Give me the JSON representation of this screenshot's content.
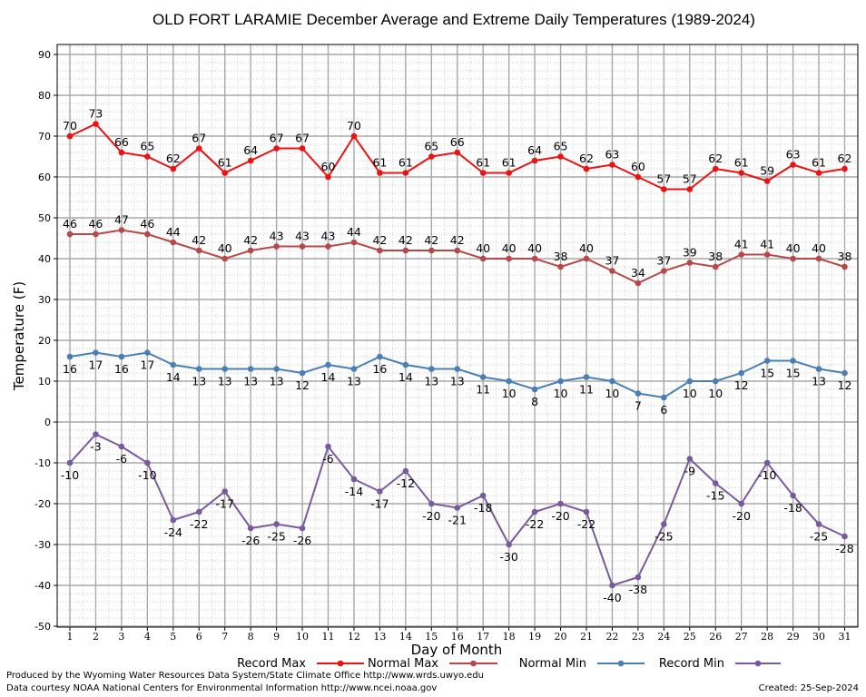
{
  "chart_data": {
    "type": "line",
    "title": "OLD FORT LARAMIE December Average and Extreme Daily Temperatures (1989-2024)",
    "xlabel": "Day of Month",
    "ylabel": "Temperature (F)",
    "ylim": [
      -50,
      92
    ],
    "yticks": [
      -50,
      -40,
      -30,
      -20,
      -10,
      0,
      10,
      20,
      30,
      40,
      50,
      60,
      70,
      80,
      90
    ],
    "x": [
      1,
      2,
      3,
      4,
      5,
      6,
      7,
      8,
      9,
      10,
      11,
      12,
      13,
      14,
      15,
      16,
      17,
      18,
      19,
      20,
      21,
      22,
      23,
      24,
      25,
      26,
      27,
      28,
      29,
      30,
      31
    ],
    "grid": true,
    "legend_placement": "bottom",
    "series": [
      {
        "name": "Record Max",
        "color": "#ee1111",
        "values": [
          70,
          73,
          66,
          65,
          62,
          67,
          61,
          64,
          67,
          67,
          60,
          70,
          61,
          61,
          65,
          66,
          61,
          61,
          64,
          65,
          62,
          63,
          60,
          57,
          57,
          62,
          61,
          59,
          63,
          61,
          62
        ]
      },
      {
        "name": "Normal Max",
        "color": "#b84848",
        "values": [
          46,
          46,
          47,
          46,
          44,
          42,
          40,
          42,
          43,
          43,
          43,
          44,
          42,
          42,
          42,
          42,
          40,
          40,
          40,
          38,
          40,
          37,
          34,
          37,
          39,
          38,
          41,
          41,
          40,
          40,
          38
        ]
      },
      {
        "name": "Normal Min",
        "color": "#4a7fb5",
        "values": [
          16,
          17,
          16,
          17,
          14,
          13,
          13,
          13,
          13,
          12,
          14,
          13,
          16,
          14,
          13,
          13,
          11,
          10,
          8,
          10,
          11,
          10,
          7,
          6,
          10,
          10,
          12,
          15,
          15,
          13,
          12
        ]
      },
      {
        "name": "Record Min",
        "color": "#7a5a9e",
        "values": [
          -10,
          -3,
          -6,
          -10,
          -24,
          -22,
          -17,
          -26,
          -25,
          -26,
          -6,
          -14,
          -17,
          -12,
          -20,
          -21,
          -18,
          -30,
          -22,
          -20,
          -22,
          -40,
          -38,
          -25,
          -9,
          -15,
          -20,
          -10,
          -18,
          -25,
          -28
        ]
      }
    ]
  },
  "footer": {
    "produced_by": "Produced by the Wyoming Water Resources Data System/State Climate Office http://www.wrds.uwyo.edu",
    "data_courtesy": "Data courtesy NOAA National Centers for Environmental Information http://www.ncei.noaa.gov",
    "created": "Created:  25-Sep-2024"
  }
}
